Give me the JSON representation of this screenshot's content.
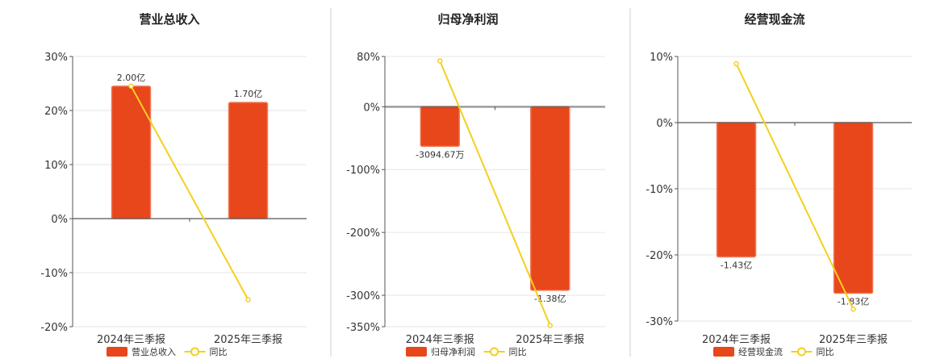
{
  "colors": {
    "bar": "#e8461b",
    "bar_stroke": "#f07a5a",
    "line": "#f5cf1e",
    "grid": "#e6e6e6",
    "axis": "#555555",
    "divider": "#cccccc"
  },
  "chart_data": [
    {
      "type": "bar",
      "title": "营业总收入",
      "categories": [
        "2024年三季报",
        "2025年三季报"
      ],
      "series": [
        {
          "name": "营业总收入",
          "type": "bar",
          "values": [
            24.5,
            21.5
          ],
          "labels": [
            "2.00亿",
            "1.70亿"
          ]
        },
        {
          "name": "同比",
          "type": "line",
          "values": [
            24.5,
            -15
          ]
        }
      ],
      "ylim": [
        -20,
        30
      ],
      "yticks": [
        30,
        20,
        10,
        0,
        -10,
        -20
      ],
      "ytick_labels": [
        "30%",
        "20%",
        "10%",
        "0%",
        "-10%",
        "-20%"
      ],
      "grid": true,
      "legend": "bottom"
    },
    {
      "type": "bar",
      "title": "归母净利润",
      "categories": [
        "2024年三季报",
        "2025年三季报"
      ],
      "series": [
        {
          "name": "归母净利润",
          "type": "bar",
          "values": [
            -63,
            -292
          ],
          "labels": [
            "-3094.67万",
            "-1.38亿"
          ]
        },
        {
          "name": "同比",
          "type": "line",
          "values": [
            73,
            -348
          ]
        }
      ],
      "ylim": [
        -350,
        80
      ],
      "yticks": [
        80,
        0,
        -100,
        -200,
        -300,
        -350
      ],
      "ytick_labels": [
        "80%",
        "0%",
        "-100%",
        "-200%",
        "-300%",
        "-350%"
      ],
      "grid": true,
      "legend": "bottom"
    },
    {
      "type": "bar",
      "title": "经营现金流",
      "categories": [
        "2024年三季报",
        "2025年三季报"
      ],
      "series": [
        {
          "name": "经营现金流",
          "type": "bar",
          "values": [
            -20.3,
            -25.8
          ],
          "labels": [
            "-1.43亿",
            "-1.83亿"
          ]
        },
        {
          "name": "同比",
          "type": "line",
          "values": [
            8.9,
            -28.2
          ]
        }
      ],
      "ylim": [
        -30,
        10
      ],
      "yticks": [
        10,
        0,
        -10,
        -20,
        -30
      ],
      "ytick_labels": [
        "10%",
        "0%",
        "-10%",
        "-20%",
        "-30%"
      ],
      "grid": true,
      "legend": "bottom"
    }
  ]
}
